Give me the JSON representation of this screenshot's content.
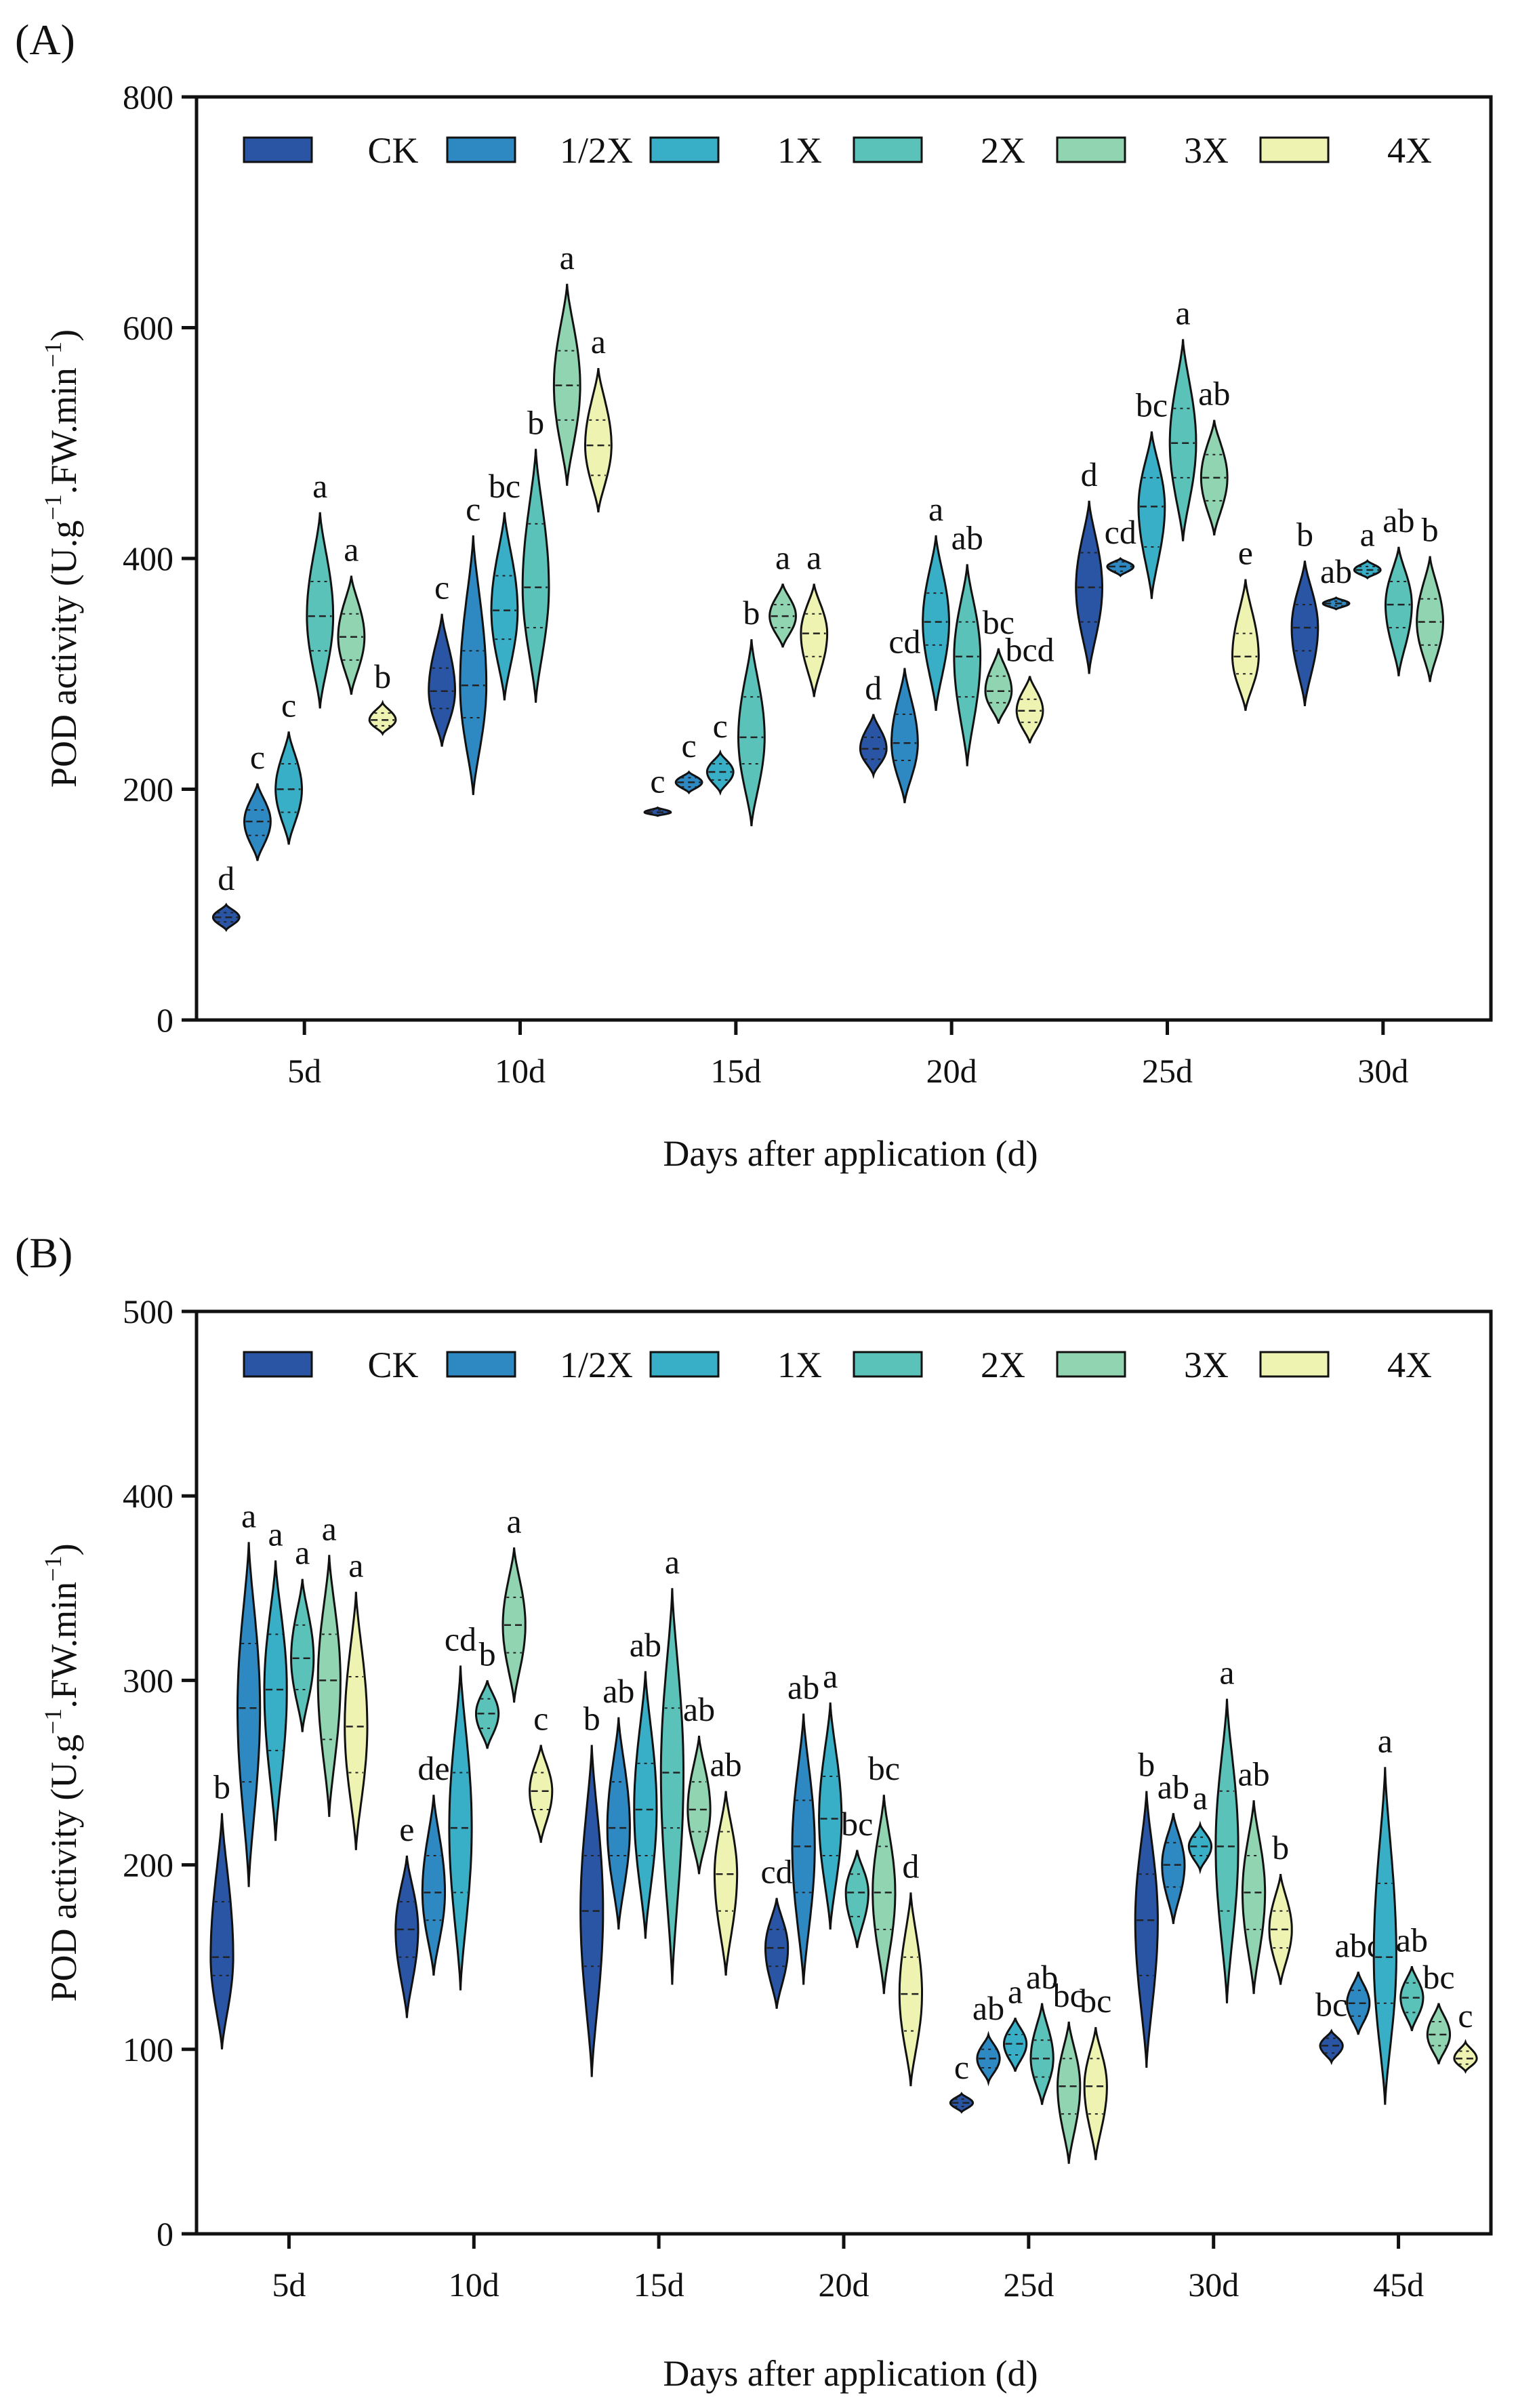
{
  "colors": {
    "CK": "#2a55a4",
    "1/2X": "#2e88c2",
    "1X": "#38afc6",
    "2X": "#5bc2b9",
    "3X": "#91d4b1",
    "4X": "#eef3b2"
  },
  "chart_data": [
    {
      "panel_label": "(A)",
      "type": "violin",
      "xlabel": "Days after application (d)",
      "ylabel": {
        "base": "POD activity (U.g",
        "sup1": "−1",
        "mid": ".FW.min",
        "sup2": "−1",
        "end": ")"
      },
      "ylim": [
        0,
        800
      ],
      "yticks": [
        0,
        200,
        400,
        600,
        800
      ],
      "legend": [
        "CK",
        "1/2X",
        "1X",
        "2X",
        "3X",
        "4X"
      ],
      "legend_position": "top",
      "categories": [
        "5d",
        "10d",
        "15d",
        "20d",
        "25d",
        "30d"
      ],
      "groups": [
        {
          "category": "5d",
          "violins": [
            {
              "series": "CK",
              "min": 78,
              "max": 100,
              "median": 89,
              "q1": 85,
              "q3": 93,
              "label": "d"
            },
            {
              "series": "1/2X",
              "min": 138,
              "max": 205,
              "median": 172,
              "q1": 160,
              "q3": 182,
              "label": "c"
            },
            {
              "series": "1X",
              "min": 152,
              "max": 250,
              "median": 200,
              "q1": 180,
              "q3": 222,
              "label": "c"
            },
            {
              "series": "2X",
              "min": 270,
              "max": 440,
              "median": 350,
              "q1": 320,
              "q3": 380,
              "label": "a"
            },
            {
              "series": "3X",
              "min": 282,
              "max": 385,
              "median": 332,
              "q1": 312,
              "q3": 352,
              "label": "a"
            },
            {
              "series": "4X",
              "min": 248,
              "max": 275,
              "median": 260,
              "q1": 255,
              "q3": 266,
              "label": "b"
            }
          ]
        },
        {
          "category": "10d",
          "violins": [
            {
              "series": "CK",
              "min": 237,
              "max": 352,
              "median": 285,
              "q1": 270,
              "q3": 305,
              "label": "c"
            },
            {
              "series": "1/2X",
              "min": 195,
              "max": 420,
              "median": 290,
              "q1": 262,
              "q3": 320,
              "label": "c"
            },
            {
              "series": "1X",
              "min": 277,
              "max": 440,
              "median": 355,
              "q1": 330,
              "q3": 385,
              "label": "bc"
            },
            {
              "series": "2X",
              "min": 275,
              "max": 495,
              "median": 375,
              "q1": 340,
              "q3": 430,
              "label": "b"
            },
            {
              "series": "3X",
              "min": 463,
              "max": 638,
              "median": 550,
              "q1": 520,
              "q3": 580,
              "label": "a"
            },
            {
              "series": "4X",
              "min": 440,
              "max": 565,
              "median": 498,
              "q1": 472,
              "q3": 520,
              "label": "a"
            }
          ]
        },
        {
          "category": "15d",
          "violins": [
            {
              "series": "CK",
              "min": 177,
              "max": 184,
              "median": 180,
              "q1": 178,
              "q3": 182,
              "label": "c"
            },
            {
              "series": "1/2X",
              "min": 197,
              "max": 215,
              "median": 206,
              "q1": 202,
              "q3": 210,
              "label": "c"
            },
            {
              "series": "1X",
              "min": 197,
              "max": 232,
              "median": 215,
              "q1": 208,
              "q3": 222,
              "label": "c"
            },
            {
              "series": "2X",
              "min": 168,
              "max": 330,
              "median": 245,
              "q1": 222,
              "q3": 280,
              "label": "b"
            },
            {
              "series": "3X",
              "min": 323,
              "max": 378,
              "median": 350,
              "q1": 340,
              "q3": 360,
              "label": "a"
            },
            {
              "series": "4X",
              "min": 280,
              "max": 378,
              "median": 335,
              "q1": 315,
              "q3": 352,
              "label": "a"
            }
          ]
        },
        {
          "category": "20d",
          "violins": [
            {
              "series": "CK",
              "min": 212,
              "max": 265,
              "median": 235,
              "q1": 226,
              "q3": 245,
              "label": "d"
            },
            {
              "series": "1/2X",
              "min": 188,
              "max": 305,
              "median": 240,
              "q1": 225,
              "q3": 265,
              "label": "cd"
            },
            {
              "series": "1X",
              "min": 268,
              "max": 420,
              "median": 345,
              "q1": 325,
              "q3": 370,
              "label": "a"
            },
            {
              "series": "2X",
              "min": 220,
              "max": 395,
              "median": 315,
              "q1": 280,
              "q3": 345,
              "label": "ab"
            },
            {
              "series": "3X",
              "min": 257,
              "max": 322,
              "median": 285,
              "q1": 275,
              "q3": 298,
              "label": "bc"
            },
            {
              "series": "4X",
              "min": 240,
              "max": 298,
              "median": 268,
              "q1": 258,
              "q3": 278,
              "label": "bcd"
            }
          ]
        },
        {
          "category": "25d",
          "violins": [
            {
              "series": "CK",
              "min": 300,
              "max": 450,
              "median": 375,
              "q1": 345,
              "q3": 405,
              "label": "d"
            },
            {
              "series": "1/2X",
              "min": 385,
              "max": 400,
              "median": 393,
              "q1": 389,
              "q3": 397,
              "label": "cd"
            },
            {
              "series": "1X",
              "min": 365,
              "max": 510,
              "median": 445,
              "q1": 410,
              "q3": 470,
              "label": "bc"
            },
            {
              "series": "2X",
              "min": 415,
              "max": 590,
              "median": 500,
              "q1": 470,
              "q3": 530,
              "label": "a"
            },
            {
              "series": "3X",
              "min": 420,
              "max": 520,
              "median": 470,
              "q1": 450,
              "q3": 490,
              "label": "ab"
            },
            {
              "series": "4X",
              "min": 268,
              "max": 382,
              "median": 315,
              "q1": 300,
              "q3": 335,
              "label": "e"
            }
          ]
        },
        {
          "category": "30d",
          "violins": [
            {
              "series": "CK",
              "min": 272,
              "max": 398,
              "median": 340,
              "q1": 320,
              "q3": 360,
              "label": "b"
            },
            {
              "series": "1/2X",
              "min": 356,
              "max": 366,
              "median": 361,
              "q1": 359,
              "q3": 363,
              "label": "ab"
            },
            {
              "series": "1X",
              "min": 383,
              "max": 398,
              "median": 390,
              "q1": 387,
              "q3": 393,
              "label": "a"
            },
            {
              "series": "2X",
              "min": 298,
              "max": 410,
              "median": 360,
              "q1": 340,
              "q3": 380,
              "label": "ab"
            },
            {
              "series": "3X",
              "min": 293,
              "max": 402,
              "median": 345,
              "q1": 325,
              "q3": 365,
              "label": "b"
            }
          ]
        }
      ]
    },
    {
      "panel_label": "(B)",
      "type": "violin",
      "xlabel": "Days after application (d)",
      "ylabel": {
        "base": "POD activity (U.g",
        "sup1": "−1",
        "mid": ".FW.min",
        "sup2": "−1",
        "end": ")"
      },
      "ylim": [
        0,
        500
      ],
      "yticks": [
        0,
        100,
        200,
        300,
        400,
        500
      ],
      "legend": [
        "CK",
        "1/2X",
        "1X",
        "2X",
        "3X",
        "4X"
      ],
      "legend_position": "top",
      "categories": [
        "5d",
        "10d",
        "15d",
        "20d",
        "25d",
        "30d",
        "45d"
      ],
      "groups": [
        {
          "category": "5d",
          "violins": [
            {
              "series": "CK",
              "min": 100,
              "max": 228,
              "median": 150,
              "q1": 140,
              "q3": 180,
              "label": "b"
            },
            {
              "series": "1/2X",
              "min": 188,
              "max": 375,
              "median": 285,
              "q1": 245,
              "q3": 320,
              "label": "a"
            },
            {
              "series": "1X",
              "min": 213,
              "max": 365,
              "median": 295,
              "q1": 262,
              "q3": 325,
              "label": "a"
            },
            {
              "series": "2X",
              "min": 272,
              "max": 355,
              "median": 312,
              "q1": 295,
              "q3": 330,
              "label": "a"
            },
            {
              "series": "3X",
              "min": 226,
              "max": 368,
              "median": 300,
              "q1": 268,
              "q3": 325,
              "label": "a"
            },
            {
              "series": "4X",
              "min": 208,
              "max": 348,
              "median": 275,
              "q1": 250,
              "q3": 302,
              "label": "a"
            }
          ]
        },
        {
          "category": "10d",
          "violins": [
            {
              "series": "CK",
              "min": 117,
              "max": 205,
              "median": 165,
              "q1": 150,
              "q3": 180,
              "label": "e"
            },
            {
              "series": "1/2X",
              "min": 140,
              "max": 238,
              "median": 185,
              "q1": 170,
              "q3": 205,
              "label": "de"
            },
            {
              "series": "1X",
              "min": 132,
              "max": 308,
              "median": 220,
              "q1": 185,
              "q3": 250,
              "label": "cd"
            },
            {
              "series": "2X",
              "min": 263,
              "max": 300,
              "median": 282,
              "q1": 274,
              "q3": 290,
              "label": "b"
            },
            {
              "series": "3X",
              "min": 288,
              "max": 372,
              "median": 330,
              "q1": 315,
              "q3": 345,
              "label": "a"
            },
            {
              "series": "4X",
              "min": 212,
              "max": 265,
              "median": 240,
              "q1": 230,
              "q3": 250,
              "label": "c"
            }
          ]
        },
        {
          "category": "15d",
          "violins": [
            {
              "series": "CK",
              "min": 85,
              "max": 265,
              "median": 175,
              "q1": 145,
              "q3": 205,
              "label": "b"
            },
            {
              "series": "1/2X",
              "min": 165,
              "max": 280,
              "median": 220,
              "q1": 205,
              "q3": 245,
              "label": "ab"
            },
            {
              "series": "1X",
              "min": 160,
              "max": 305,
              "median": 230,
              "q1": 205,
              "q3": 255,
              "label": "ab"
            },
            {
              "series": "2X",
              "min": 135,
              "max": 350,
              "median": 250,
              "q1": 220,
              "q3": 285,
              "label": "a"
            },
            {
              "series": "3X",
              "min": 195,
              "max": 270,
              "median": 230,
              "q1": 218,
              "q3": 245,
              "label": "ab"
            },
            {
              "series": "4X",
              "min": 140,
              "max": 240,
              "median": 195,
              "q1": 175,
              "q3": 218,
              "label": "ab"
            }
          ]
        },
        {
          "category": "20d",
          "violins": [
            {
              "series": "CK",
              "min": 122,
              "max": 182,
              "median": 155,
              "q1": 145,
              "q3": 165,
              "label": "cd"
            },
            {
              "series": "1/2X",
              "min": 135,
              "max": 282,
              "median": 210,
              "q1": 185,
              "q3": 235,
              "label": "ab"
            },
            {
              "series": "1X",
              "min": 165,
              "max": 288,
              "median": 225,
              "q1": 205,
              "q3": 248,
              "label": "a"
            },
            {
              "series": "2X",
              "min": 155,
              "max": 208,
              "median": 185,
              "q1": 172,
              "q3": 195,
              "label": "bc"
            },
            {
              "series": "3X",
              "min": 130,
              "max": 238,
              "median": 185,
              "q1": 165,
              "q3": 210,
              "label": "bc"
            },
            {
              "series": "4X",
              "min": 80,
              "max": 185,
              "median": 130,
              "q1": 110,
              "q3": 150,
              "label": "d"
            }
          ]
        },
        {
          "category": "25d",
          "violins": [
            {
              "series": "CK",
              "min": 66,
              "max": 76,
              "median": 71,
              "q1": 69,
              "q3": 73,
              "label": "c"
            },
            {
              "series": "1/2X",
              "min": 82,
              "max": 108,
              "median": 95,
              "q1": 90,
              "q3": 100,
              "label": "ab"
            },
            {
              "series": "1X",
              "min": 88,
              "max": 117,
              "median": 103,
              "q1": 97,
              "q3": 108,
              "label": "a"
            },
            {
              "series": "2X",
              "min": 70,
              "max": 125,
              "median": 95,
              "q1": 85,
              "q3": 105,
              "label": "ab"
            },
            {
              "series": "3X",
              "min": 38,
              "max": 115,
              "median": 80,
              "q1": 65,
              "q3": 95,
              "label": "bc"
            },
            {
              "series": "4X",
              "min": 40,
              "max": 112,
              "median": 80,
              "q1": 65,
              "q3": 95,
              "label": "bc"
            }
          ]
        },
        {
          "category": "30d",
          "violins": [
            {
              "series": "CK",
              "min": 90,
              "max": 240,
              "median": 170,
              "q1": 140,
              "q3": 195,
              "label": "b"
            },
            {
              "series": "1/2X",
              "min": 168,
              "max": 228,
              "median": 200,
              "q1": 188,
              "q3": 212,
              "label": "ab"
            },
            {
              "series": "1X",
              "min": 197,
              "max": 222,
              "median": 210,
              "q1": 205,
              "q3": 215,
              "label": "a"
            },
            {
              "series": "2X",
              "min": 125,
              "max": 290,
              "median": 210,
              "q1": 175,
              "q3": 240,
              "label": "a"
            },
            {
              "series": "3X",
              "min": 130,
              "max": 235,
              "median": 185,
              "q1": 165,
              "q3": 205,
              "label": "ab"
            },
            {
              "series": "4X",
              "min": 135,
              "max": 195,
              "median": 165,
              "q1": 155,
              "q3": 175,
              "label": "b"
            }
          ]
        },
        {
          "category": "45d",
          "violins": [
            {
              "series": "CK",
              "min": 93,
              "max": 110,
              "median": 102,
              "q1": 98,
              "q3": 106,
              "label": "bc"
            },
            {
              "series": "1/2X",
              "min": 108,
              "max": 142,
              "median": 125,
              "q1": 118,
              "q3": 132,
              "label": "abc"
            },
            {
              "series": "1X",
              "min": 70,
              "max": 253,
              "median": 150,
              "q1": 125,
              "q3": 190,
              "label": "a"
            },
            {
              "series": "2X",
              "min": 110,
              "max": 145,
              "median": 128,
              "q1": 120,
              "q3": 136,
              "label": "ab"
            },
            {
              "series": "3X",
              "min": 92,
              "max": 125,
              "median": 108,
              "q1": 102,
              "q3": 115,
              "label": "bc"
            },
            {
              "series": "4X",
              "min": 88,
              "max": 104,
              "median": 95,
              "q1": 92,
              "q3": 99,
              "label": "c"
            }
          ]
        }
      ]
    }
  ]
}
